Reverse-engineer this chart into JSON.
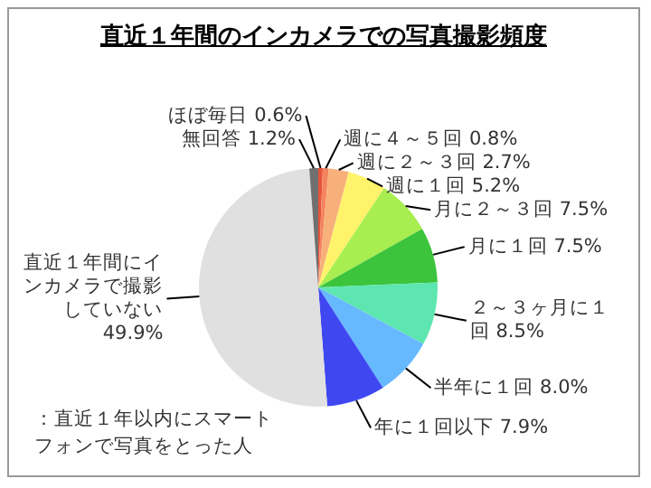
{
  "chart_data": {
    "type": "pie",
    "title": "直近１年間のインカメラでの写真撮影頻度",
    "categories": [
      "ほぼ毎日",
      "週に４～５回",
      "週に２～３回",
      "週に１回",
      "月に２～３回",
      "月に１回",
      "２～３ヶ月に１回",
      "半年に１回",
      "年に１回以下",
      "直近１年間にインカメラで撮影していない",
      "無回答"
    ],
    "values": [
      0.6,
      0.8,
      2.7,
      5.2,
      7.5,
      7.5,
      8.5,
      8.0,
      7.9,
      49.9,
      1.2
    ],
    "value_labels": [
      "0.6%",
      "0.8%",
      "2.7%",
      "5.2%",
      "7.5%",
      "7.5%",
      "8.5%",
      "8.0%",
      "7.9%",
      "49.9%",
      "1.2%"
    ],
    "colors": [
      "#e8553a",
      "#f4845f",
      "#f7b07a",
      "#fff36b",
      "#a8ee50",
      "#3cc43c",
      "#5ee6b0",
      "#66b8ff",
      "#3f48f0",
      "#e0e0e0",
      "#707070"
    ],
    "annotations": [
      "：直近１年以内にスマートフォンで写真をとった人"
    ]
  }
}
